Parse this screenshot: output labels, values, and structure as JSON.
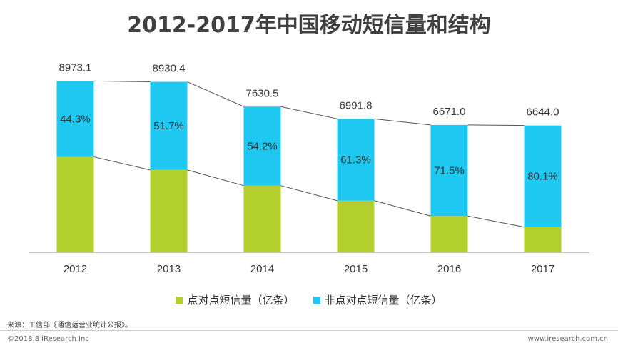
{
  "title": "2012-2017年中国移动短信量和结构",
  "chart_data": {
    "type": "bar",
    "stacked": true,
    "title": "2012-2017年中国移动短信量和结构",
    "categories": [
      "2012",
      "2013",
      "2014",
      "2015",
      "2016",
      "2017"
    ],
    "totals": [
      8973.1,
      8930.4,
      7630.5,
      6991.8,
      6671.0,
      6644.0
    ],
    "total_labels": [
      "8973.1",
      "8930.4",
      "7630.5",
      "6991.8",
      "6671.0",
      "6644.0"
    ],
    "non_p2p_share_labels": [
      "44.3%",
      "51.7%",
      "54.2%",
      "61.3%",
      "71.5%",
      "80.1%"
    ],
    "series": [
      {
        "name": "点对点短信量（亿条）",
        "share": [
          55.7,
          48.3,
          45.8,
          38.7,
          28.5,
          19.9
        ],
        "color": "#b2cf2c"
      },
      {
        "name": "非点对点短信量（亿条）",
        "share": [
          44.3,
          51.7,
          54.2,
          61.3,
          71.5,
          80.1
        ],
        "color": "#1ec8f0"
      }
    ],
    "ylim": [
      0,
      10000
    ],
    "xlabel": "",
    "ylabel": "",
    "legend_position": "bottom"
  },
  "legend": {
    "p2p_label": "点对点短信量（亿条）",
    "non_p2p_label": "非点对点短信量（亿条）"
  },
  "source": "来源：工信部《通信运营业统计公报》。",
  "copyright": "©2018.8 iResearch Inc",
  "website": "www.iresearch.com.cn"
}
